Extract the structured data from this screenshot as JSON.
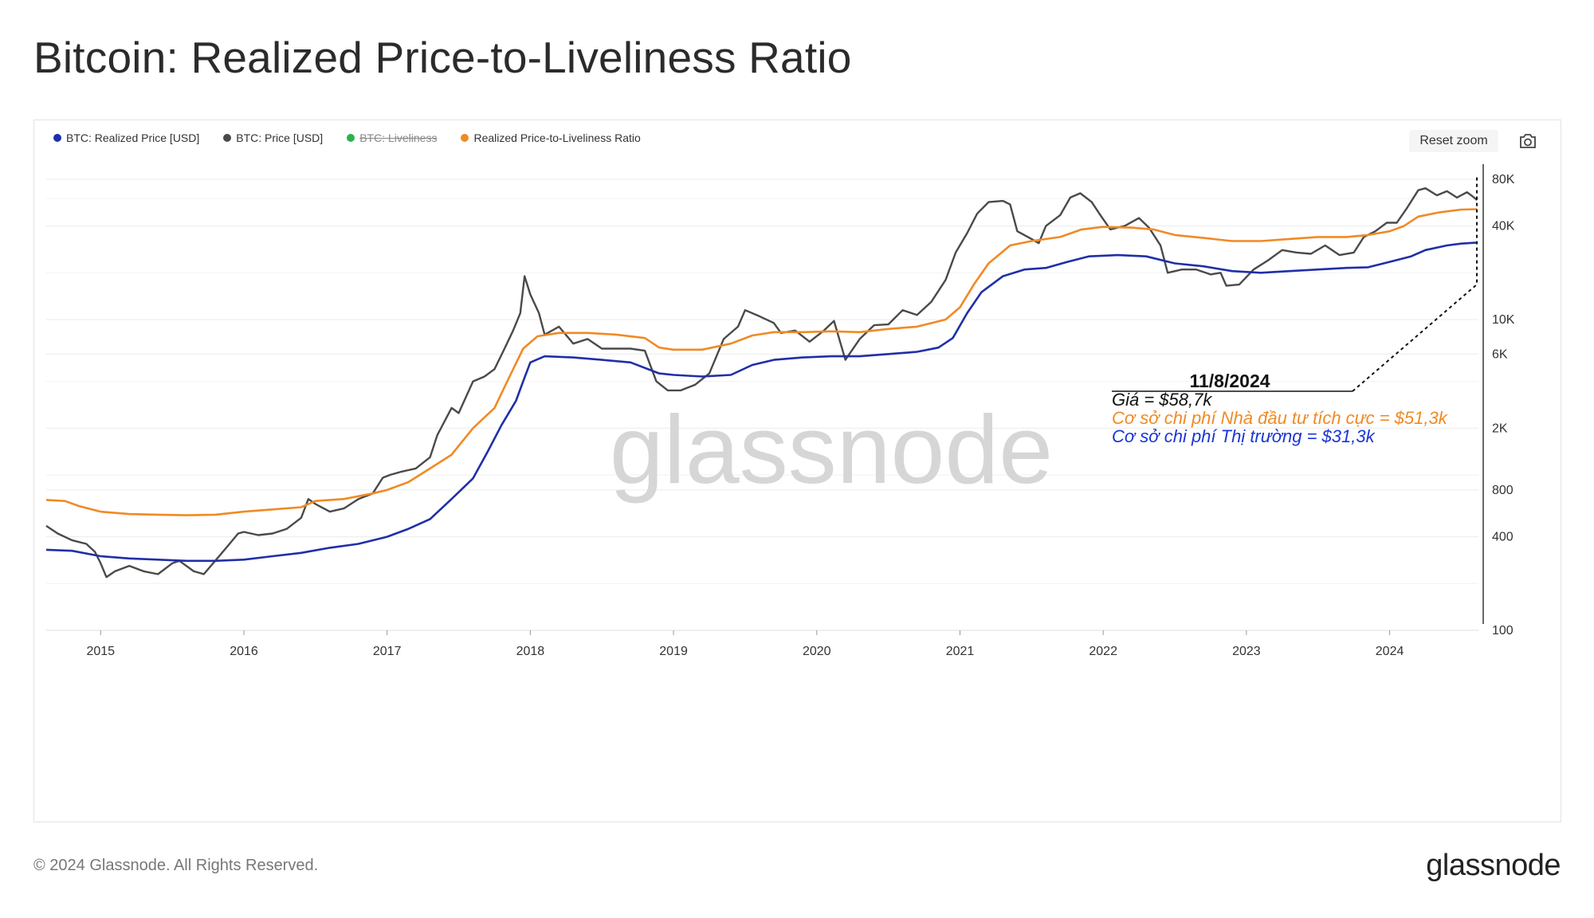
{
  "title": "Bitcoin: Realized Price-to-Liveliness Ratio",
  "toolbar": {
    "reset_zoom": "Reset zoom",
    "camera_icon": "camera-icon"
  },
  "legend": [
    {
      "label": "BTC: Realized Price [USD]",
      "color": "#1f2fa8",
      "hidden": false
    },
    {
      "label": "BTC: Price [USD]",
      "color": "#4a4a4a",
      "hidden": false
    },
    {
      "label": "BTC: Liveliness",
      "color": "#2bb24c",
      "hidden": true
    },
    {
      "label": "Realized Price-to-Liveliness Ratio",
      "color": "#f08a24",
      "hidden": false
    }
  ],
  "watermark": "glassnode",
  "annotation": {
    "date": "11/8/2024",
    "price": "Giá = $58,7k",
    "active_basis": "Cơ sở chi phí Nhà đầu tư tích cực = $51,3k",
    "market_basis": "Cơ sở chi phí Thị trường = $31,3k",
    "colors": {
      "price": "#111111",
      "active": "#f08a24",
      "market": "#1a35d6"
    }
  },
  "footer": {
    "copyright": "© 2024 Glassnode. All Rights Reserved.",
    "logo": "glassnode"
  },
  "chart_data": {
    "type": "line",
    "title": "Bitcoin: Realized Price-to-Liveliness Ratio",
    "y_scale": "log",
    "ylim": [
      100,
      100000
    ],
    "y_ticks": [
      {
        "value": 100,
        "label": "100"
      },
      {
        "value": 400,
        "label": "400"
      },
      {
        "value": 800,
        "label": "800"
      },
      {
        "value": 2000,
        "label": "2K"
      },
      {
        "value": 6000,
        "label": "6K"
      },
      {
        "value": 10000,
        "label": "10K"
      },
      {
        "value": 40000,
        "label": "40K"
      },
      {
        "value": 80000,
        "label": "80K"
      }
    ],
    "x_range": [
      2014.62,
      2024.62
    ],
    "x_ticks": [
      "2015",
      "2016",
      "2017",
      "2018",
      "2019",
      "2020",
      "2021",
      "2022",
      "2023",
      "2024"
    ],
    "series": [
      {
        "name": "BTC: Price [USD]",
        "color": "#4a4a4a",
        "points": [
          [
            2014.62,
            470
          ],
          [
            2014.7,
            420
          ],
          [
            2014.8,
            380
          ],
          [
            2014.9,
            360
          ],
          [
            2014.96,
            320
          ],
          [
            2015.0,
            270
          ],
          [
            2015.04,
            220
          ],
          [
            2015.1,
            240
          ],
          [
            2015.2,
            260
          ],
          [
            2015.3,
            240
          ],
          [
            2015.4,
            230
          ],
          [
            2015.5,
            270
          ],
          [
            2015.55,
            280
          ],
          [
            2015.65,
            240
          ],
          [
            2015.72,
            230
          ],
          [
            2015.8,
            280
          ],
          [
            2015.9,
            360
          ],
          [
            2015.96,
            420
          ],
          [
            2016.0,
            430
          ],
          [
            2016.1,
            410
          ],
          [
            2016.2,
            420
          ],
          [
            2016.3,
            450
          ],
          [
            2016.4,
            530
          ],
          [
            2016.45,
            700
          ],
          [
            2016.5,
            650
          ],
          [
            2016.6,
            580
          ],
          [
            2016.7,
            610
          ],
          [
            2016.8,
            700
          ],
          [
            2016.9,
            760
          ],
          [
            2016.97,
            960
          ],
          [
            2017.02,
            1000
          ],
          [
            2017.1,
            1050
          ],
          [
            2017.2,
            1100
          ],
          [
            2017.3,
            1300
          ],
          [
            2017.35,
            1800
          ],
          [
            2017.45,
            2700
          ],
          [
            2017.5,
            2500
          ],
          [
            2017.6,
            4000
          ],
          [
            2017.68,
            4300
          ],
          [
            2017.75,
            4800
          ],
          [
            2017.82,
            6500
          ],
          [
            2017.88,
            8500
          ],
          [
            2017.93,
            11000
          ],
          [
            2017.96,
            19000
          ],
          [
            2018.0,
            14500
          ],
          [
            2018.06,
            11000
          ],
          [
            2018.1,
            8000
          ],
          [
            2018.2,
            9000
          ],
          [
            2018.3,
            7000
          ],
          [
            2018.4,
            7500
          ],
          [
            2018.5,
            6500
          ],
          [
            2018.6,
            6500
          ],
          [
            2018.7,
            6500
          ],
          [
            2018.8,
            6300
          ],
          [
            2018.88,
            4000
          ],
          [
            2018.96,
            3500
          ],
          [
            2019.05,
            3500
          ],
          [
            2019.15,
            3800
          ],
          [
            2019.25,
            4500
          ],
          [
            2019.35,
            7500
          ],
          [
            2019.45,
            9000
          ],
          [
            2019.5,
            11500
          ],
          [
            2019.6,
            10500
          ],
          [
            2019.7,
            9500
          ],
          [
            2019.75,
            8200
          ],
          [
            2019.85,
            8500
          ],
          [
            2019.95,
            7200
          ],
          [
            2020.05,
            8500
          ],
          [
            2020.12,
            9800
          ],
          [
            2020.2,
            5500
          ],
          [
            2020.3,
            7500
          ],
          [
            2020.4,
            9200
          ],
          [
            2020.5,
            9300
          ],
          [
            2020.6,
            11500
          ],
          [
            2020.7,
            10700
          ],
          [
            2020.8,
            13000
          ],
          [
            2020.9,
            18000
          ],
          [
            2020.97,
            27000
          ],
          [
            2021.05,
            36000
          ],
          [
            2021.12,
            48000
          ],
          [
            2021.2,
            57000
          ],
          [
            2021.3,
            58000
          ],
          [
            2021.35,
            55000
          ],
          [
            2021.4,
            37000
          ],
          [
            2021.5,
            33000
          ],
          [
            2021.55,
            31000
          ],
          [
            2021.6,
            40000
          ],
          [
            2021.7,
            47000
          ],
          [
            2021.77,
            61000
          ],
          [
            2021.84,
            65000
          ],
          [
            2021.92,
            57000
          ],
          [
            2021.98,
            47000
          ],
          [
            2022.05,
            38000
          ],
          [
            2022.15,
            40000
          ],
          [
            2022.25,
            45000
          ],
          [
            2022.32,
            39000
          ],
          [
            2022.4,
            30000
          ],
          [
            2022.45,
            20000
          ],
          [
            2022.55,
            21000
          ],
          [
            2022.65,
            21000
          ],
          [
            2022.75,
            19500
          ],
          [
            2022.82,
            20000
          ],
          [
            2022.86,
            16500
          ],
          [
            2022.95,
            16800
          ],
          [
            2023.05,
            21000
          ],
          [
            2023.15,
            24000
          ],
          [
            2023.25,
            28000
          ],
          [
            2023.35,
            27000
          ],
          [
            2023.45,
            26500
          ],
          [
            2023.55,
            30000
          ],
          [
            2023.65,
            26000
          ],
          [
            2023.75,
            27000
          ],
          [
            2023.82,
            34000
          ],
          [
            2023.9,
            37000
          ],
          [
            2023.98,
            42000
          ],
          [
            2024.05,
            42000
          ],
          [
            2024.12,
            52000
          ],
          [
            2024.2,
            68000
          ],
          [
            2024.25,
            70000
          ],
          [
            2024.33,
            63000
          ],
          [
            2024.4,
            67000
          ],
          [
            2024.47,
            61000
          ],
          [
            2024.54,
            66000
          ],
          [
            2024.58,
            62000
          ],
          [
            2024.61,
            58700
          ]
        ]
      },
      {
        "name": "Realized Price-to-Liveliness Ratio",
        "color": "#f08a24",
        "points": [
          [
            2014.62,
            690
          ],
          [
            2014.75,
            680
          ],
          [
            2014.85,
            630
          ],
          [
            2015.0,
            580
          ],
          [
            2015.2,
            560
          ],
          [
            2015.4,
            555
          ],
          [
            2015.6,
            550
          ],
          [
            2015.8,
            555
          ],
          [
            2016.0,
            580
          ],
          [
            2016.2,
            600
          ],
          [
            2016.4,
            620
          ],
          [
            2016.5,
            680
          ],
          [
            2016.7,
            700
          ],
          [
            2016.9,
            760
          ],
          [
            2017.0,
            800
          ],
          [
            2017.15,
            900
          ],
          [
            2017.3,
            1100
          ],
          [
            2017.45,
            1350
          ],
          [
            2017.6,
            2000
          ],
          [
            2017.75,
            2700
          ],
          [
            2017.85,
            4200
          ],
          [
            2017.95,
            6500
          ],
          [
            2018.05,
            7800
          ],
          [
            2018.2,
            8200
          ],
          [
            2018.4,
            8200
          ],
          [
            2018.6,
            8000
          ],
          [
            2018.8,
            7600
          ],
          [
            2018.9,
            6600
          ],
          [
            2019.0,
            6400
          ],
          [
            2019.2,
            6400
          ],
          [
            2019.4,
            7000
          ],
          [
            2019.55,
            7900
          ],
          [
            2019.7,
            8300
          ],
          [
            2019.9,
            8300
          ],
          [
            2020.1,
            8400
          ],
          [
            2020.3,
            8300
          ],
          [
            2020.5,
            8700
          ],
          [
            2020.7,
            9000
          ],
          [
            2020.9,
            10000
          ],
          [
            2021.0,
            12000
          ],
          [
            2021.1,
            17000
          ],
          [
            2021.2,
            23000
          ],
          [
            2021.35,
            30000
          ],
          [
            2021.5,
            32000
          ],
          [
            2021.7,
            34000
          ],
          [
            2021.85,
            38000
          ],
          [
            2022.0,
            39500
          ],
          [
            2022.2,
            39000
          ],
          [
            2022.35,
            38000
          ],
          [
            2022.5,
            35000
          ],
          [
            2022.7,
            33500
          ],
          [
            2022.9,
            32000
          ],
          [
            2023.1,
            32000
          ],
          [
            2023.3,
            33000
          ],
          [
            2023.5,
            34000
          ],
          [
            2023.7,
            34000
          ],
          [
            2023.85,
            35000
          ],
          [
            2024.0,
            37000
          ],
          [
            2024.1,
            40000
          ],
          [
            2024.2,
            46000
          ],
          [
            2024.35,
            49000
          ],
          [
            2024.5,
            51000
          ],
          [
            2024.61,
            51300
          ]
        ]
      },
      {
        "name": "BTC: Realized Price [USD]",
        "color": "#1f2fa8",
        "points": [
          [
            2014.62,
            330
          ],
          [
            2014.8,
            325
          ],
          [
            2015.0,
            300
          ],
          [
            2015.2,
            290
          ],
          [
            2015.4,
            285
          ],
          [
            2015.6,
            280
          ],
          [
            2015.8,
            280
          ],
          [
            2016.0,
            285
          ],
          [
            2016.2,
            300
          ],
          [
            2016.4,
            315
          ],
          [
            2016.6,
            340
          ],
          [
            2016.8,
            360
          ],
          [
            2017.0,
            400
          ],
          [
            2017.15,
            450
          ],
          [
            2017.3,
            520
          ],
          [
            2017.45,
            700
          ],
          [
            2017.6,
            950
          ],
          [
            2017.7,
            1400
          ],
          [
            2017.8,
            2100
          ],
          [
            2017.9,
            3000
          ],
          [
            2017.95,
            4000
          ],
          [
            2018.0,
            5300
          ],
          [
            2018.1,
            5800
          ],
          [
            2018.3,
            5700
          ],
          [
            2018.5,
            5500
          ],
          [
            2018.7,
            5300
          ],
          [
            2018.9,
            4500
          ],
          [
            2019.0,
            4400
          ],
          [
            2019.2,
            4300
          ],
          [
            2019.4,
            4400
          ],
          [
            2019.55,
            5100
          ],
          [
            2019.7,
            5500
          ],
          [
            2019.9,
            5700
          ],
          [
            2020.1,
            5800
          ],
          [
            2020.3,
            5800
          ],
          [
            2020.5,
            6000
          ],
          [
            2020.7,
            6200
          ],
          [
            2020.85,
            6600
          ],
          [
            2020.95,
            7600
          ],
          [
            2021.05,
            11000
          ],
          [
            2021.15,
            15000
          ],
          [
            2021.3,
            19000
          ],
          [
            2021.45,
            21000
          ],
          [
            2021.6,
            21500
          ],
          [
            2021.75,
            23500
          ],
          [
            2021.9,
            25500
          ],
          [
            2022.1,
            26000
          ],
          [
            2022.3,
            25500
          ],
          [
            2022.5,
            23000
          ],
          [
            2022.7,
            22000
          ],
          [
            2022.9,
            20500
          ],
          [
            2023.1,
            20000
          ],
          [
            2023.3,
            20500
          ],
          [
            2023.5,
            21000
          ],
          [
            2023.7,
            21500
          ],
          [
            2023.85,
            21700
          ],
          [
            2024.0,
            23500
          ],
          [
            2024.15,
            25500
          ],
          [
            2024.25,
            28000
          ],
          [
            2024.4,
            30000
          ],
          [
            2024.5,
            30800
          ],
          [
            2024.61,
            31300
          ]
        ]
      }
    ]
  }
}
